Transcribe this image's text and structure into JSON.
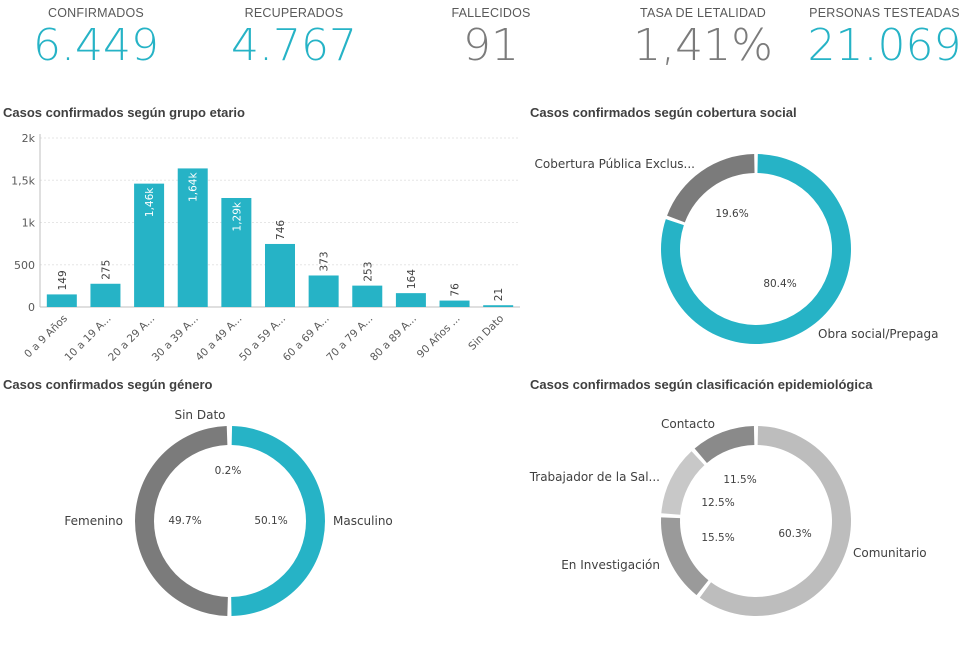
{
  "kpis": [
    {
      "label": "CONFIRMADOS",
      "value": "6.449",
      "color": "#26b3c6"
    },
    {
      "label": "RECUPERADOS",
      "value": "4.767",
      "color": "#26b3c6"
    },
    {
      "label": "FALLECIDOS",
      "value": "91",
      "color": "#7b7b7b"
    },
    {
      "label": "TASA DE LETALIDAD",
      "value": "1,41%",
      "color": "#7b7b7b"
    },
    {
      "label": "PERSONAS TESTEADAS",
      "value": "21.069",
      "color": "#26b3c6"
    }
  ],
  "titles": {
    "age": "Casos confirmados según grupo etario",
    "coverage": "Casos confirmados según cobertura social",
    "gender": "Casos confirmados según género",
    "epi": "Casos confirmados según clasificación epidemiológica"
  },
  "chart_data": [
    {
      "type": "bar",
      "title": "Casos confirmados según grupo etario",
      "categories": [
        "0 a 9 Años",
        "10 a 19 A...",
        "20 a 29 A...",
        "30 a 39 A...",
        "40 a 49 A...",
        "50 a 59 A...",
        "60 a 69 A...",
        "70 a 79 A...",
        "80 a 89 A...",
        "90 Años ...",
        "Sin Dato"
      ],
      "values": [
        149,
        275,
        1460,
        1640,
        1290,
        746,
        373,
        253,
        164,
        76,
        21
      ],
      "data_labels": [
        "149",
        "275",
        "1,46k",
        "1,64k",
        "1,29k",
        "746",
        "373",
        "253",
        "164",
        "76",
        "21"
      ],
      "yticks": [
        "0",
        "500",
        "1k",
        "1,5k",
        "2k"
      ],
      "ylim": [
        0,
        2000
      ],
      "color": "#26b3c6"
    },
    {
      "type": "pie",
      "title": "Casos confirmados según cobertura social",
      "slices": [
        {
          "label": "Obra social/Prepaga",
          "value": 80.4,
          "pct": "80.4%",
          "color": "#26b3c6"
        },
        {
          "label": "Cobertura Pública Exclus...",
          "value": 19.6,
          "pct": "19.6%",
          "color": "#7b7b7b"
        }
      ]
    },
    {
      "type": "pie",
      "title": "Casos confirmados según género",
      "slices": [
        {
          "label": "Masculino",
          "value": 50.1,
          "pct": "50.1%",
          "color": "#26b3c6"
        },
        {
          "label": "Femenino",
          "value": 49.7,
          "pct": "49.7%",
          "color": "#7b7b7b"
        },
        {
          "label": "Sin Dato",
          "value": 0.2,
          "pct": "0.2%",
          "color": "#7b7b7b"
        }
      ]
    },
    {
      "type": "pie",
      "title": "Casos confirmados según clasificación epidemiológica",
      "slices": [
        {
          "label": "Comunitario",
          "value": 60.3,
          "pct": "60.3%",
          "color": "#bdbdbd"
        },
        {
          "label": "En Investigación",
          "value": 15.5,
          "pct": "15.5%",
          "color": "#9a9a9a"
        },
        {
          "label": "Trabajador de la Sal...",
          "value": 12.5,
          "pct": "12.5%",
          "color": "#c8c8c8"
        },
        {
          "label": "Contacto",
          "value": 11.5,
          "pct": "11.5%",
          "color": "#8a8a8a"
        }
      ]
    }
  ]
}
